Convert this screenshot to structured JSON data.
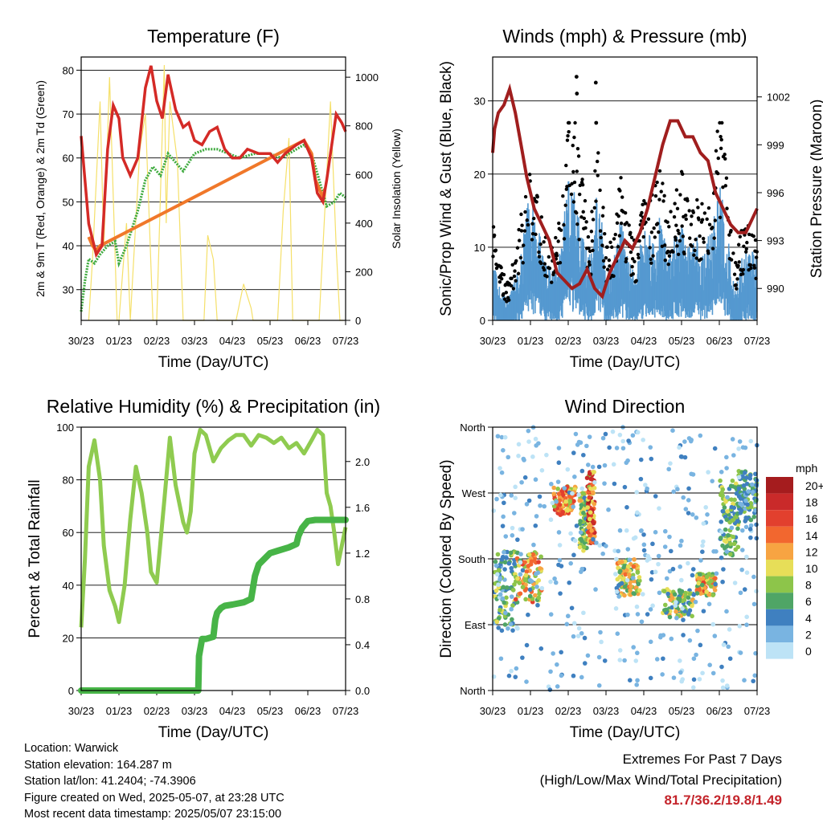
{
  "x_ticks": [
    "30/23",
    "01/23",
    "02/23",
    "03/23",
    "04/23",
    "05/23",
    "06/23",
    "07/23"
  ],
  "info": {
    "location": "Location: Warwick",
    "elevation": "Station elevation: 164.287 m",
    "latlon": "Station lat/lon: 41.2404; -74.3906",
    "created": "Figure created on Wed, 2025-05-07, at 23:28 UTC",
    "recent": "Most recent data timestamp: 2025/05/07 23:15:00"
  },
  "extremes": {
    "title": "Extremes For Past 7 Days",
    "subtitle": "(High/Low/Max Wind/Total Precipitation)",
    "values": "81.7/36.2/19.8/1.49"
  },
  "colors": {
    "temp": "#d42a26",
    "temp9": "#f0782a",
    "dewpoint": "#3eaa3e",
    "solar": "#f5e06a",
    "wind": "#5599d0",
    "gust": "#000000",
    "pressure": "#a01e1e",
    "rh": "#8fcb50",
    "precip": "#47b447"
  },
  "chart_data": [
    {
      "type": "line",
      "title": "Temperature (F)",
      "xlabel": "Time (Day/UTC)",
      "ylabel": "2m & 9m T (Red, Orange) & 2m Td (Green)",
      "y2label": "Solar Insolation (Yellow)",
      "xlim": [
        0,
        7
      ],
      "ylim": [
        23,
        83
      ],
      "y2lim": [
        0,
        1083
      ],
      "yticks": [
        30,
        40,
        50,
        60,
        70,
        80
      ],
      "y2ticks": [
        0,
        200,
        400,
        600,
        800,
        1000
      ],
      "series": [
        {
          "name": "2m T",
          "axis": "left",
          "x": [
            0,
            0.1,
            0.2,
            0.4,
            0.55,
            0.7,
            0.85,
            1.0,
            1.1,
            1.3,
            1.5,
            1.7,
            1.85,
            2.0,
            2.15,
            2.3,
            2.5,
            2.7,
            2.85,
            3.0,
            3.2,
            3.4,
            3.6,
            3.8,
            4.0,
            4.2,
            4.4,
            4.7,
            5.0,
            5.2,
            5.4,
            5.7,
            5.9,
            6.1,
            6.25,
            6.4,
            6.5,
            6.6,
            6.75,
            6.9,
            7.0
          ],
          "y": [
            65,
            55,
            45,
            38,
            40,
            62,
            72,
            69,
            60,
            56,
            60,
            76,
            81,
            73,
            69,
            79,
            71,
            67,
            68,
            64,
            63,
            66,
            67,
            62,
            60,
            60,
            62,
            61,
            61,
            59,
            61,
            63,
            64,
            60,
            52,
            50,
            55,
            61,
            70,
            68,
            66
          ]
        },
        {
          "name": "9m T",
          "axis": "left",
          "x": [
            0.2,
            0.3,
            0.4,
            0.5,
            5.9,
            6.1,
            6.2,
            6.3,
            6.4,
            6.45
          ],
          "y": [
            42,
            40,
            39,
            40,
            64,
            61,
            55,
            53,
            51,
            53
          ]
        },
        {
          "name": "2m Td",
          "axis": "left",
          "x": [
            0,
            0.1,
            0.2,
            0.35,
            0.5,
            0.7,
            0.9,
            1.0,
            1.2,
            1.5,
            1.7,
            1.9,
            2.1,
            2.3,
            2.5,
            2.7,
            3.0,
            3.3,
            3.6,
            3.9,
            4.2,
            4.6,
            5.0,
            5.3,
            5.7,
            5.9,
            6.1,
            6.3,
            6.5,
            6.7,
            6.85,
            7.0
          ],
          "y": [
            25,
            32,
            37,
            36,
            38,
            40,
            41,
            36,
            40,
            48,
            55,
            58,
            56,
            61,
            59,
            57,
            61,
            62,
            62,
            61,
            60,
            61,
            61,
            60,
            62,
            63,
            61,
            55,
            49,
            50,
            52,
            51
          ]
        },
        {
          "name": "Solar",
          "axis": "right",
          "x": [
            0.2,
            0.3,
            0.5,
            0.6,
            0.75,
            0.95,
            1.0,
            1.2,
            1.3,
            1.55,
            1.7,
            1.9,
            2.0,
            2.2,
            2.25,
            2.35,
            2.55,
            2.7,
            3.25,
            3.35,
            3.5,
            3.6,
            4.1,
            4.3,
            4.5,
            4.55,
            5.2,
            5.35,
            5.5,
            5.6,
            6.3,
            6.6,
            6.75,
            6.85,
            6.95
          ],
          "y": [
            0,
            250,
            900,
            300,
            1000,
            0,
            0,
            400,
            0,
            700,
            850,
            0,
            0,
            1050,
            400,
            900,
            650,
            0,
            0,
            350,
            250,
            0,
            0,
            150,
            50,
            0,
            0,
            450,
            750,
            0,
            0,
            900,
            300,
            0,
            0
          ]
        }
      ]
    },
    {
      "type": "scatter",
      "title": "Winds (mph) & Pressure (mb)",
      "xlabel": "Time (Day/UTC)",
      "ylabel": "Sonic/Prop Wind & Gust (Blue, Black)",
      "y2label": "Station Pressure (Maroon)",
      "xlim": [
        0,
        7
      ],
      "ylim": [
        0,
        36
      ],
      "y2lim": [
        988,
        1004.5
      ],
      "yticks": [
        0,
        10,
        20,
        30
      ],
      "y2ticks": [
        990,
        993,
        996,
        999,
        1002
      ],
      "series": [
        {
          "name": "Wind",
          "kind": "area",
          "x": [
            0,
            0.2,
            0.4,
            0.6,
            0.8,
            1.0,
            1.2,
            1.4,
            1.6,
            1.8,
            2.0,
            2.2,
            2.4,
            2.6,
            2.8,
            3.0,
            3.2,
            3.4,
            3.6,
            3.8,
            4.0,
            4.2,
            4.4,
            4.6,
            4.8,
            5.0,
            5.2,
            5.4,
            5.6,
            5.8,
            6.0,
            6.2,
            6.4,
            6.6,
            6.8,
            7.0
          ],
          "y": [
            6,
            3,
            2,
            4,
            8,
            13,
            9,
            6,
            5,
            7,
            15,
            12,
            8,
            6,
            14,
            5,
            6,
            10,
            6,
            5,
            9,
            8,
            10,
            7,
            8,
            9,
            7,
            8,
            7,
            9,
            14,
            9,
            3,
            6,
            7,
            6
          ]
        },
        {
          "name": "Gust",
          "kind": "points",
          "x": [
            0,
            0.2,
            0.4,
            0.6,
            0.8,
            1.0,
            1.2,
            1.4,
            1.6,
            1.8,
            2.0,
            2.2,
            2.4,
            2.6,
            2.8,
            3.0,
            3.2,
            3.4,
            3.6,
            3.8,
            4.0,
            4.2,
            4.4,
            4.6,
            4.8,
            5.0,
            5.2,
            5.4,
            5.6,
            5.8,
            6.0,
            6.2,
            6.4,
            6.6,
            6.8,
            7.0
          ],
          "y": [
            12,
            6,
            4,
            7,
            13,
            19,
            14,
            10,
            8,
            12,
            25,
            22,
            14,
            10,
            24,
            8,
            9,
            16,
            11,
            8,
            14,
            13,
            17,
            12,
            13,
            16,
            12,
            13,
            12,
            15,
            24,
            16,
            6,
            10,
            11,
            9
          ]
        },
        {
          "name": "Gust peaks",
          "kind": "points",
          "x": [
            2.22,
            2.23,
            2.73,
            2.74
          ],
          "y": [
            33.3,
            31.0,
            32.5,
            27.0
          ]
        },
        {
          "name": "Pressure",
          "kind": "line",
          "x": [
            0,
            0.05,
            0.15,
            0.3,
            0.45,
            0.6,
            0.75,
            0.9,
            1.1,
            1.3,
            1.5,
            1.7,
            1.9,
            2.1,
            2.3,
            2.5,
            2.7,
            2.9,
            3.1,
            3.3,
            3.5,
            3.7,
            3.9,
            4.1,
            4.3,
            4.5,
            4.7,
            4.9,
            5.1,
            5.3,
            5.5,
            5.7,
            5.9,
            6.1,
            6.3,
            6.5,
            6.7,
            6.9,
            7.0
          ],
          "y": [
            998.5,
            1000,
            1001,
            1001.5,
            1002.5,
            1001,
            999,
            997,
            995,
            994,
            993,
            991,
            990.5,
            990,
            990.3,
            991.2,
            990,
            989.5,
            991,
            992,
            993,
            992.5,
            993.5,
            995,
            997,
            999,
            1000.5,
            1000.5,
            999.5,
            999.5,
            998.5,
            998,
            996,
            995,
            994,
            993.5,
            993.5,
            994.5,
            995
          ]
        }
      ]
    },
    {
      "type": "line",
      "title": "Relative Humidity (%) & Precipitation (in)",
      "xlabel": "Time (Day/UTC)",
      "ylabel": "Percent & Total Rainfall",
      "xlim": [
        0,
        7
      ],
      "ylim": [
        0,
        100
      ],
      "y2lim": [
        0,
        2.3
      ],
      "yticks": [
        0,
        20,
        40,
        60,
        80,
        100
      ],
      "y2ticks": [
        0.0,
        0.4,
        0.8,
        1.2,
        1.6,
        2.0
      ],
      "y2ticklabels": [
        "0.0",
        "0.4",
        "0.8",
        "1.2",
        "1.6",
        "2.0"
      ],
      "series": [
        {
          "name": "RH",
          "axis": "left",
          "x": [
            0,
            0.1,
            0.2,
            0.35,
            0.5,
            0.6,
            0.75,
            0.9,
            1.0,
            1.15,
            1.3,
            1.45,
            1.6,
            1.75,
            1.85,
            2.0,
            2.2,
            2.35,
            2.5,
            2.7,
            2.8,
            2.9,
            3.0,
            3.15,
            3.3,
            3.5,
            3.7,
            3.9,
            4.1,
            4.3,
            4.5,
            4.7,
            4.9,
            5.1,
            5.3,
            5.5,
            5.7,
            5.9,
            6.1,
            6.25,
            6.4,
            6.5,
            6.6,
            6.7,
            6.8,
            6.9,
            7.0
          ],
          "y": [
            24,
            50,
            85,
            95,
            80,
            55,
            38,
            32,
            26,
            40,
            65,
            85,
            75,
            60,
            45,
            41,
            72,
            96,
            78,
            64,
            60,
            68,
            90,
            99,
            97,
            87,
            92,
            95,
            97,
            97,
            93,
            97,
            96,
            94,
            96,
            92,
            94,
            90,
            95,
            99,
            97,
            75,
            70,
            60,
            48,
            55,
            62
          ]
        },
        {
          "name": "Precipitation",
          "axis": "right",
          "x": [
            0,
            0.5,
            1.0,
            1.5,
            2.0,
            2.5,
            3.0,
            3.1,
            3.12,
            3.2,
            3.3,
            3.5,
            3.55,
            3.6,
            3.7,
            3.8,
            4.0,
            4.3,
            4.5,
            4.6,
            4.7,
            5.0,
            5.2,
            5.5,
            5.7,
            5.75,
            5.85,
            6.0,
            6.2,
            6.5,
            6.8,
            7.0
          ],
          "y": [
            0,
            0,
            0,
            0,
            0,
            0,
            0,
            0,
            0.3,
            0.45,
            0.45,
            0.47,
            0.62,
            0.68,
            0.72,
            0.74,
            0.75,
            0.77,
            0.8,
            1.0,
            1.1,
            1.2,
            1.22,
            1.25,
            1.28,
            1.35,
            1.42,
            1.48,
            1.49,
            1.49,
            1.49,
            1.49
          ]
        }
      ]
    },
    {
      "type": "scatter",
      "title": "Wind Direction",
      "xlabel": "Time (Day/UTC)",
      "ylabel": "Direction (Colored By Speed)",
      "xlim": [
        0,
        7
      ],
      "ylim": [
        0,
        360
      ],
      "yticks": [
        0,
        90,
        180,
        270,
        360
      ],
      "yticklabels": [
        "North",
        "East",
        "South",
        "West",
        "North"
      ],
      "legend": {
        "title": "mph",
        "levels": [
          "20+",
          "18",
          "16",
          "14",
          "12",
          "10",
          "8",
          "6",
          "4",
          "2",
          "0"
        ],
        "colors": [
          "#a51c1e",
          "#c92a2a",
          "#e2402e",
          "#f2672f",
          "#f7a442",
          "#e7de58",
          "#8dc54a",
          "#4fa566",
          "#3f80c0",
          "#79b4e1",
          "#bde3f6"
        ]
      },
      "clusters": [
        {
          "x": [
            0.05,
            0.6
          ],
          "y": [
            90,
            190
          ],
          "speed": [
            2,
            10
          ]
        },
        {
          "x": [
            0.6,
            1.3
          ],
          "y": [
            120,
            190
          ],
          "speed": [
            4,
            16
          ]
        },
        {
          "x": [
            1.6,
            2.2
          ],
          "y": [
            240,
            280
          ],
          "speed": [
            8,
            18
          ]
        },
        {
          "x": [
            2.3,
            2.6
          ],
          "y": [
            190,
            270
          ],
          "speed": [
            4,
            12
          ]
        },
        {
          "x": [
            2.5,
            2.7
          ],
          "y": [
            200,
            300
          ],
          "speed": [
            8,
            20
          ]
        },
        {
          "x": [
            3.3,
            3.9
          ],
          "y": [
            130,
            180
          ],
          "speed": [
            6,
            14
          ]
        },
        {
          "x": [
            4.5,
            5.3
          ],
          "y": [
            100,
            140
          ],
          "speed": [
            4,
            12
          ]
        },
        {
          "x": [
            5.4,
            5.9
          ],
          "y": [
            130,
            160
          ],
          "speed": [
            6,
            16
          ]
        },
        {
          "x": [
            6.0,
            6.5
          ],
          "y": [
            180,
            290
          ],
          "speed": [
            4,
            10
          ]
        },
        {
          "x": [
            6.5,
            7.0
          ],
          "y": [
            230,
            300
          ],
          "speed": [
            2,
            8
          ]
        },
        {
          "x": [
            0.0,
            7.0
          ],
          "y": [
            0,
            360
          ],
          "speed": [
            0,
            4
          ]
        }
      ]
    }
  ]
}
